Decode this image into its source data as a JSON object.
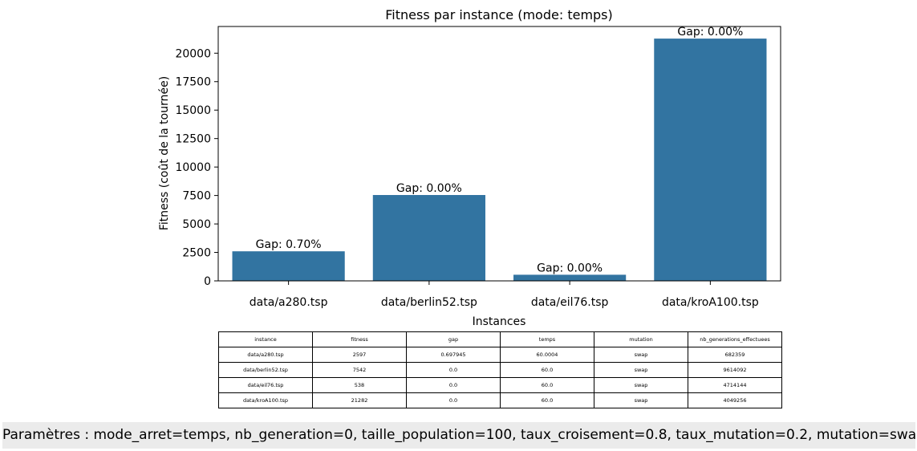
{
  "chart_data": {
    "type": "bar",
    "title": "Fitness par instance (mode: temps)",
    "xlabel": "Instances",
    "ylabel": "Fitness (coût de la tournée)",
    "categories": [
      "data/a280.tsp",
      "data/berlin52.tsp",
      "data/eil76.tsp",
      "data/kroA100.tsp"
    ],
    "values": [
      2597,
      7542,
      538,
      21282
    ],
    "bar_labels": [
      "Gap: 0.70%",
      "Gap: 0.00%",
      "Gap: 0.00%",
      "Gap: 0.00%"
    ],
    "ylim": [
      0,
      22346
    ],
    "yticks": [
      0,
      2500,
      5000,
      7500,
      10000,
      12500,
      15000,
      17500,
      20000
    ],
    "bar_color": "#3274a1",
    "grid": false
  },
  "table": {
    "columns": [
      "instance",
      "fitness",
      "gap",
      "temps",
      "mutation",
      "nb_generations_effectuees"
    ],
    "rows": [
      [
        "data/a280.tsp",
        "2597",
        "0.697945",
        "60.0004",
        "swap",
        "682359"
      ],
      [
        "data/berlin52.tsp",
        "7542",
        "0.0",
        "60.0",
        "swap",
        "9614092"
      ],
      [
        "data/eil76.tsp",
        "538",
        "0.0",
        "60.0",
        "swap",
        "4714144"
      ],
      [
        "data/kroA100.tsp",
        "21282",
        "0.0",
        "60.0",
        "swap",
        "4049256"
      ]
    ]
  },
  "params_text": "Paramètres : mode_arret=temps, nb_generation=0, taille_population=100, taux_croisement=0.8, taux_mutation=0.2, mutation=swap"
}
